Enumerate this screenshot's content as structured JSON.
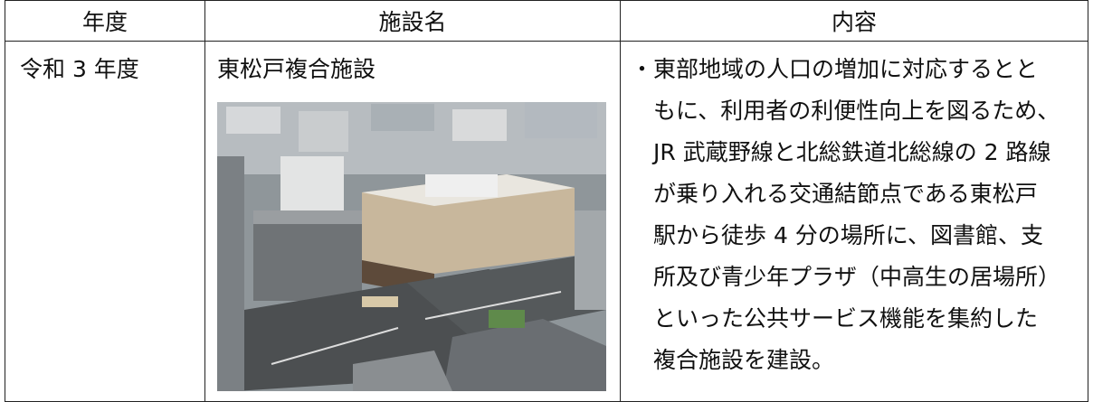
{
  "table": {
    "header": [
      "年度",
      "施設名",
      "内容"
    ],
    "rows": [
      {
        "year": "令和 3 年度",
        "facility": "東松戸複合施設",
        "content_lines": [
          "・東部地域の人口の増加に対応するとと",
          "もに、利用者の利便性向上を図るため、",
          "JR 武蔵野線と北総鉄道北総線の 2 路線",
          "が乗り入れる交通結節点である東松戸",
          "駅から徒歩 4 分の場所に、図書館、支",
          "所及び青少年プラザ（中高生の居場所）",
          "といった公共サービス機能を集約した",
          "複合施設を建設。"
        ]
      }
    ]
  }
}
